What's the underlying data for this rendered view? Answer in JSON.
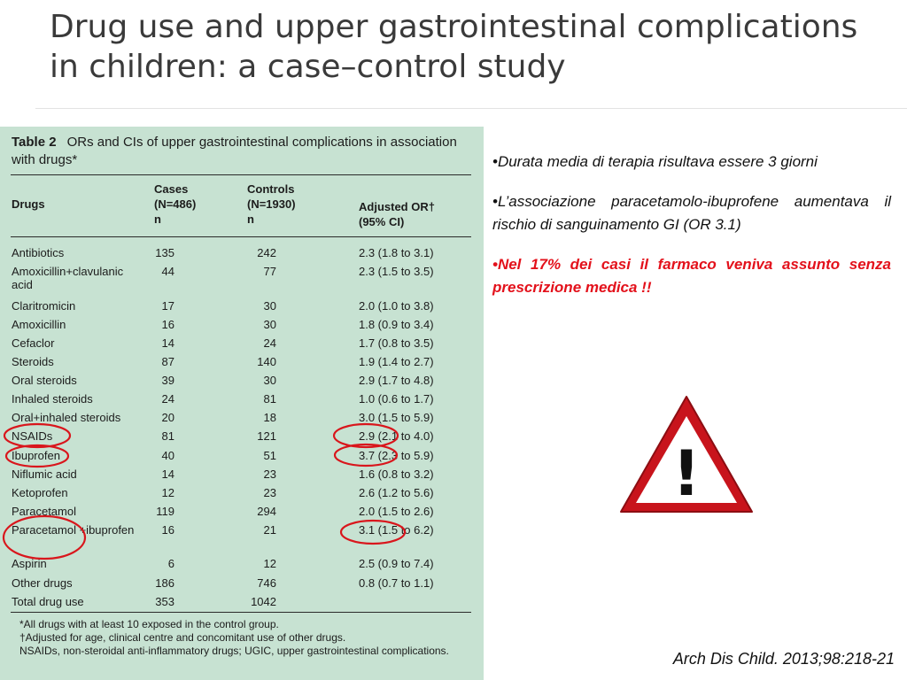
{
  "title": {
    "line1": "Drug use and upper gastrointestinal complications",
    "line2": "in children: a case–control study"
  },
  "table": {
    "number": "Table 2",
    "caption": "ORs and CIs of upper gastrointestinal complications in association with drugs*",
    "columns": {
      "drugs": "Drugs",
      "cases": "Cases\n(N=486)\nn",
      "controls": "Controls\n(N=1930)\nn",
      "or": "Adjusted OR†\n(95% CI)"
    },
    "rows": [
      {
        "drug": "Antibiotics",
        "cases": "135",
        "controls": "242",
        "or": "2.3 (1.8 to 3.1)"
      },
      {
        "drug": "Amoxicillin+clavulanic acid",
        "cases": "44",
        "controls": "77",
        "or": "2.3 (1.5 to 3.5)"
      },
      {
        "drug": "Claritromicin",
        "cases": "17",
        "controls": "30",
        "or": "2.0 (1.0 to 3.8)"
      },
      {
        "drug": "Amoxicillin",
        "cases": "16",
        "controls": "30",
        "or": "1.8 (0.9 to 3.4)"
      },
      {
        "drug": "Cefaclor",
        "cases": "14",
        "controls": "24",
        "or": "1.7 (0.8 to 3.5)"
      },
      {
        "drug": "Steroids",
        "cases": "87",
        "controls": "140",
        "or": "1.9 (1.4 to 2.7)"
      },
      {
        "drug": "Oral steroids",
        "cases": "39",
        "controls": "30",
        "or": "2.9 (1.7 to 4.8)"
      },
      {
        "drug": "Inhaled steroids",
        "cases": "24",
        "controls": "81",
        "or": "1.0 (0.6 to 1.7)"
      },
      {
        "drug": "Oral+inhaled steroids",
        "cases": "20",
        "controls": "18",
        "or": "3.0 (1.5 to 5.9)"
      },
      {
        "drug": "NSAIDs",
        "cases": "81",
        "controls": "121",
        "or": "2.9 (2.1 to 4.0)"
      },
      {
        "drug": "Ibuprofen",
        "cases": "40",
        "controls": "51",
        "or": "3.7 (2.3 to 5.9)"
      },
      {
        "drug": "Niflumic acid",
        "cases": "14",
        "controls": "23",
        "or": "1.6 (0.8 to 3.2)"
      },
      {
        "drug": "Ketoprofen",
        "cases": "12",
        "controls": "23",
        "or": "2.6 (1.2 to 5.6)"
      },
      {
        "drug": "Paracetamol",
        "cases": "119",
        "controls": "294",
        "or": "2.0 (1.5 to 2.6)"
      },
      {
        "drug": "Paracetamol +ibuprofen",
        "cases": "16",
        "controls": "21",
        "or": "3.1 (1.5 to 6.2)"
      },
      {
        "drug": "Aspirin",
        "cases": "6",
        "controls": "12",
        "or": "2.5 (0.9 to 7.4)"
      },
      {
        "drug": "Other drugs",
        "cases": "186",
        "controls": "746",
        "or": "0.8 (0.7 to 1.1)"
      },
      {
        "drug": "Total drug use",
        "cases": "353",
        "controls": "1042",
        "or": ""
      }
    ],
    "footnotes": [
      "*All drugs with at least 10 exposed in the control group.",
      "†Adjusted for age, clinical centre and concomitant use of other drugs.",
      "NSAIDs, non-steroidal anti-inflammatory drugs; UGIC, upper gastrointestinal complications."
    ],
    "highlight_color": "#d9161c"
  },
  "bullets": [
    {
      "text": "Durata media di terapia risultava essere 3 giorni",
      "emphasis": false
    },
    {
      "text": "L’associazione paracetamolo-ibuprofene aumentava il rischio di sanguinamento GI (OR 3.1)",
      "emphasis": false
    },
    {
      "text": "Nel 17% dei casi il farmaco veniva assunto senza prescrizione medica !!",
      "emphasis": true
    }
  ],
  "bullet_marker": "•",
  "warning_sign": {
    "icon": "warning-triangle-icon",
    "symbol": "!",
    "color": "#e3111b"
  },
  "citation": "Arch Dis Child. 2013;98:218-21"
}
